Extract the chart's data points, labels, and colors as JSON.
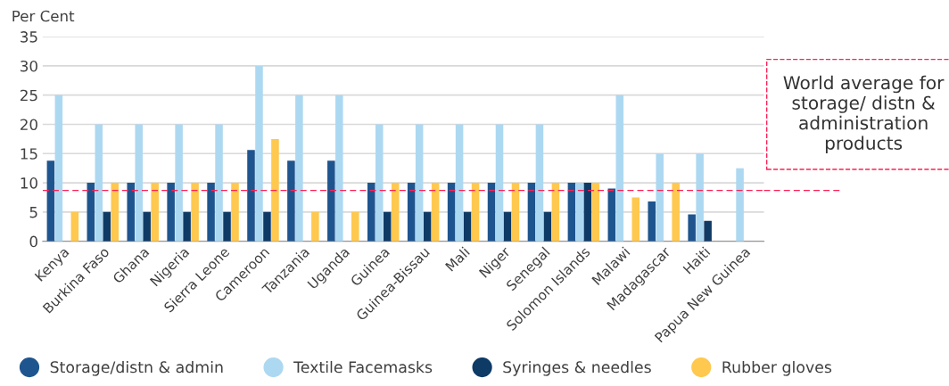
{
  "chart_data": {
    "type": "bar",
    "ylabel": "Per Cent",
    "categories": [
      "Kenya",
      "Burkina Faso",
      "Ghana",
      "Nigeria",
      "Sierra Leone",
      "Cameroon",
      "Tanzania",
      "Uganda",
      "Guinea",
      "Guinea-Bissau",
      "Mali",
      "Niger",
      "Senegal",
      "Solomon Islands",
      "Malawi",
      "Madagascar",
      "Haiti",
      "Papua New Guinea"
    ],
    "series": [
      {
        "name": "Storage/distn & admin",
        "color": "#1f558f",
        "values": [
          13.8,
          10,
          10,
          10,
          10,
          15.6,
          13.8,
          13.8,
          10,
          10,
          10,
          10,
          10,
          10,
          9,
          6.8,
          4.6,
          null
        ]
      },
      {
        "name": "Textile Facemasks",
        "color": "#add8f1",
        "values": [
          25,
          20,
          20,
          20,
          20,
          30,
          25,
          25,
          20,
          20,
          20,
          20,
          20,
          10,
          25,
          15,
          15,
          12.5
        ]
      },
      {
        "name": "Syringes & needles",
        "color": "#0e3a66",
        "values": [
          null,
          5,
          5,
          5,
          5,
          5,
          null,
          null,
          5,
          5,
          5,
          5,
          5,
          10,
          null,
          null,
          3.5,
          null
        ]
      },
      {
        "name": "Rubber gloves",
        "color": "#ffc84e",
        "values": [
          5,
          10,
          10,
          10,
          10,
          17.5,
          5,
          5,
          10,
          10,
          10,
          10,
          10,
          10,
          7.5,
          10,
          null,
          null
        ]
      }
    ],
    "ylim": [
      0,
      35
    ],
    "yticks": [
      0,
      5,
      10,
      15,
      20,
      25,
      30,
      35
    ],
    "grid": "y",
    "legend": "bottom",
    "ref_lines": [
      {
        "axis": "y",
        "value": 8.7,
        "label": "World average for storage/ distn & administration products",
        "color": "#ff1f55",
        "line_style": "dashed"
      }
    ]
  }
}
